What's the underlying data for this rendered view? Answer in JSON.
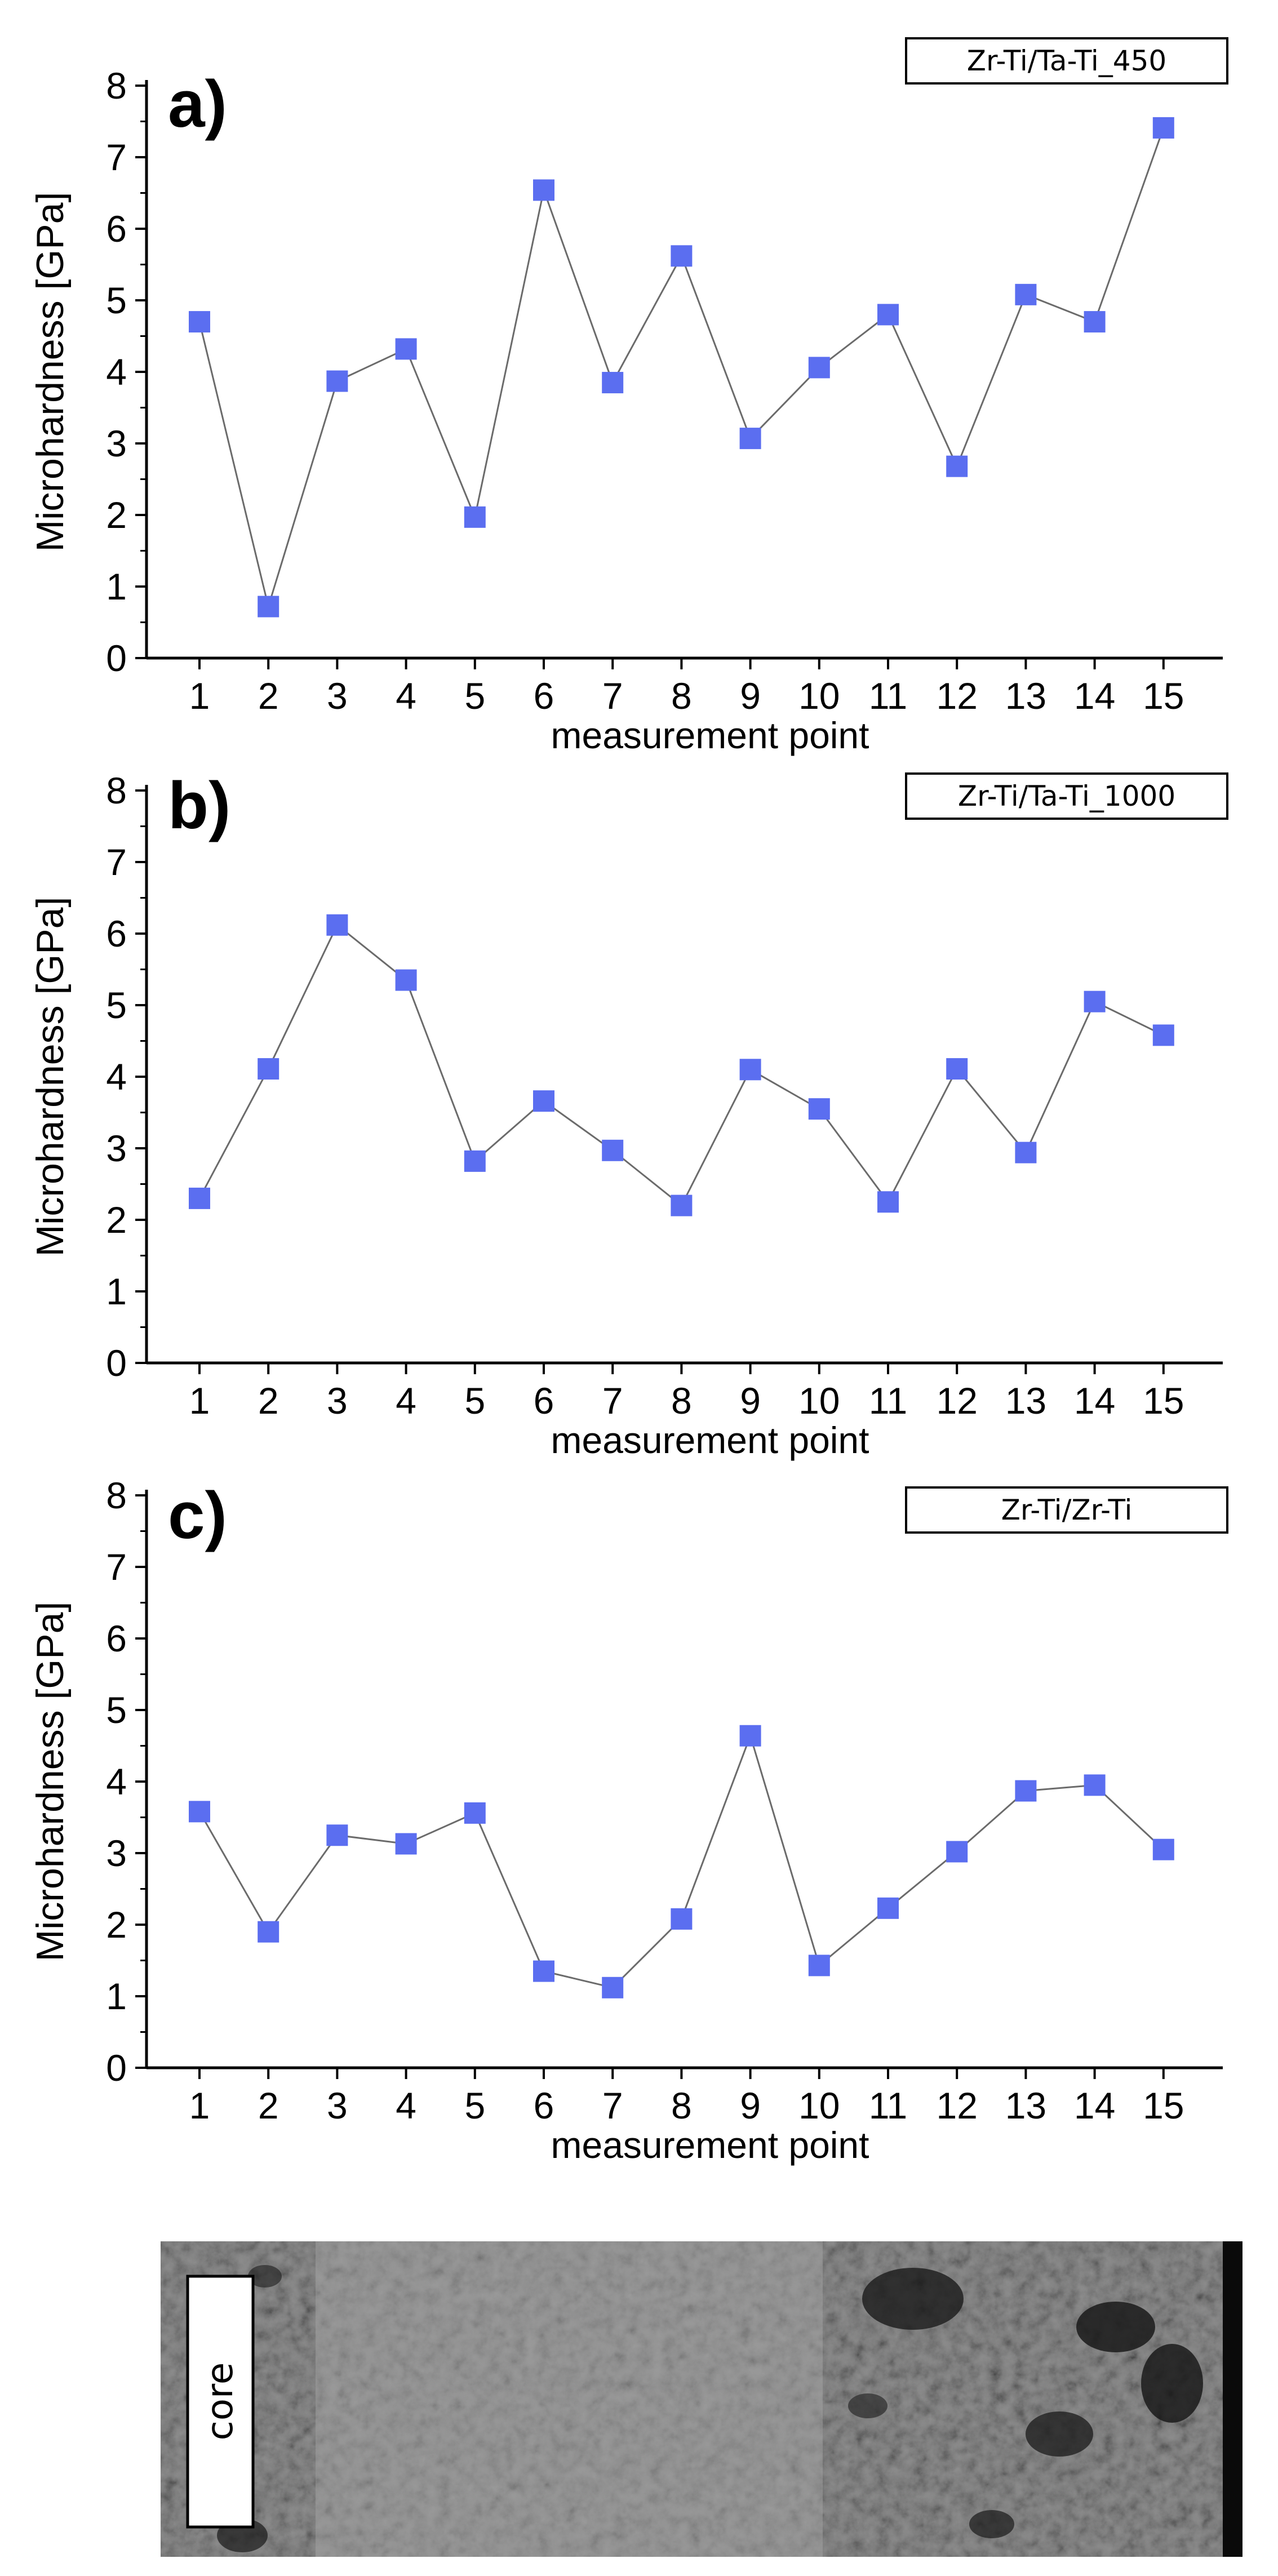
{
  "chart_data": [
    {
      "type": "line",
      "panel_label": "a)",
      "legend": "Zr-Ti/Ta-Ti_450",
      "ylabel": "Microhardness [GPa]",
      "xlabel": "measurement point",
      "ylim": [
        0,
        8
      ],
      "yticks": [
        0,
        1,
        2,
        3,
        4,
        5,
        6,
        7,
        8
      ],
      "categories": [
        "1",
        "2",
        "3",
        "4",
        "5",
        "6",
        "7",
        "8",
        "9",
        "10",
        "11",
        "12",
        "13",
        "14",
        "15"
      ],
      "values": [
        4.7,
        0.72,
        3.87,
        4.32,
        1.97,
        6.54,
        3.85,
        5.62,
        3.07,
        4.06,
        4.8,
        2.68,
        5.08,
        4.7,
        7.41
      ],
      "marker_color": "#5b6ef0",
      "line_color": "#6b6b6b"
    },
    {
      "type": "line",
      "panel_label": "b)",
      "legend": "Zr-Ti/Ta-Ti_1000",
      "ylabel": "Microhardness [GPa]",
      "xlabel": "measurement point",
      "ylim": [
        0,
        8
      ],
      "yticks": [
        0,
        1,
        2,
        3,
        4,
        5,
        6,
        7,
        8
      ],
      "categories": [
        "1",
        "2",
        "3",
        "4",
        "5",
        "6",
        "7",
        "8",
        "9",
        "10",
        "11",
        "12",
        "13",
        "14",
        "15"
      ],
      "values": [
        2.3,
        4.11,
        6.12,
        5.35,
        2.82,
        3.66,
        2.97,
        2.2,
        4.1,
        3.55,
        2.25,
        4.11,
        2.94,
        5.05,
        4.58
      ],
      "marker_color": "#5b6ef0",
      "line_color": "#6b6b6b"
    },
    {
      "type": "line",
      "panel_label": "c)",
      "legend": "Zr-Ti/Zr-Ti",
      "ylabel": "Microhardness [GPa]",
      "xlabel": "measurement point",
      "ylim": [
        0,
        8
      ],
      "yticks": [
        0,
        1,
        2,
        3,
        4,
        5,
        6,
        7,
        8
      ],
      "categories": [
        "1",
        "2",
        "3",
        "4",
        "5",
        "6",
        "7",
        "8",
        "9",
        "10",
        "11",
        "12",
        "13",
        "14",
        "15"
      ],
      "values": [
        3.58,
        1.9,
        3.25,
        3.13,
        3.56,
        1.35,
        1.12,
        2.08,
        4.64,
        1.43,
        2.23,
        3.02,
        3.87,
        3.95,
        3.05
      ],
      "marker_color": "#5b6ef0",
      "line_color": "#6b6b6b"
    }
  ],
  "micrograph": {
    "label": "core",
    "background_color": "#8c8c8c"
  }
}
